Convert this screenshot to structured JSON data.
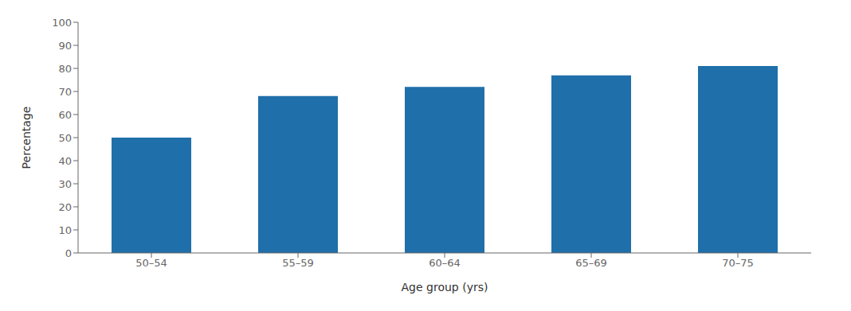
{
  "chart_data": {
    "type": "bar",
    "categories": [
      "50–54",
      "55–59",
      "60–64",
      "65–69",
      "70–75"
    ],
    "values": [
      50.0,
      68.0,
      72.0,
      77.0,
      81.0
    ],
    "color": "#1f6faa",
    "xlabel": "Age group (yrs)",
    "ylabel": "Percentage",
    "ylim": [
      0,
      100
    ],
    "yticks": [
      0,
      10,
      20,
      30,
      40,
      50,
      60,
      70,
      80,
      90,
      100
    ],
    "grid": false
  }
}
